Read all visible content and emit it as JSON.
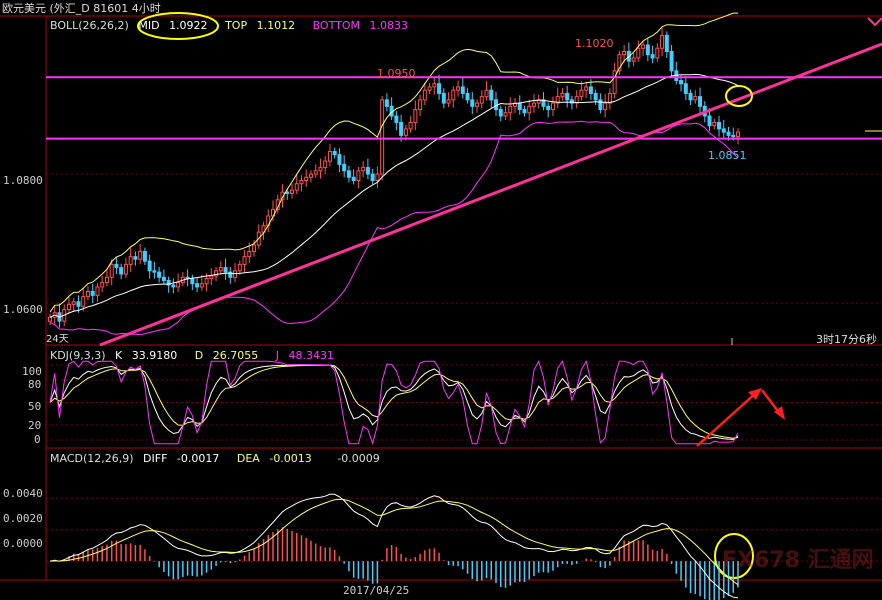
{
  "title_bar": {
    "text": "欧元美元 (外汇_D 81601 4小时"
  },
  "colors": {
    "background": "#000000",
    "axis": "#b00000",
    "grid": "#7a0000",
    "up": "#ff5050",
    "down": "#40d0ff",
    "mid_line": "#ffffff",
    "top_line": "#ffff66",
    "bottom_line": "#ff33ff",
    "trendline": "#ff3399",
    "hline": "#ff33ff",
    "k_line": "#ffffff",
    "d_line": "#ffff66",
    "j_line": "#ff33ff",
    "highlight_circle": "#ffff00",
    "arrow": "#ff2020"
  },
  "price_panel": {
    "indicator_name": "BOLL(26,26,2)",
    "mid_label": "MID",
    "mid_value": "1.0922",
    "top_label": "TOP",
    "top_value": "1.1012",
    "bottom_label": "BOTTOM",
    "bottom_value": "1.0833",
    "y_ticks": [
      "1.0800",
      "1.0600"
    ],
    "annotations": {
      "high_1": "1.0950",
      "high_2": "1.1020",
      "low_1": "1.0851"
    },
    "period_label": "24天",
    "countdown": "3时17分6秒"
  },
  "kdj_panel": {
    "indicator_name": "KDJ(9,3,3)",
    "k_label": "K",
    "k_value": "33.9180",
    "d_label": "D",
    "d_value": "26.7055",
    "j_label": "J",
    "j_value": "48.3431",
    "y_ticks": [
      "100",
      "80",
      "50",
      "20",
      "0"
    ]
  },
  "macd_panel": {
    "indicator_name": "MACD(12,26,9)",
    "diff_label": "DIFF",
    "diff_value": "-0.0017",
    "dea_label": "DEA",
    "dea_value": "-0.0013",
    "macd_value": "-0.0009",
    "y_ticks": [
      "0.0040",
      "0.0020",
      "0.0000"
    ]
  },
  "x_axis": {
    "date_label": "2017/04/25"
  },
  "watermark": {
    "text": "FX678 汇通网"
  },
  "chart_data": {
    "type": "candlestick",
    "instrument": "欧元美元",
    "timeframe": "4小时",
    "price_ylim": [
      1.0535,
      1.1045
    ],
    "horizontal_levels": [
      1.095,
      1.0855
    ],
    "trendline": [
      [
        1.0535,
        0
      ],
      [
        1.1045,
        1
      ]
    ],
    "candles_close": [
      1.0578,
      1.0585,
      1.0572,
      1.059,
      1.0598,
      1.0602,
      1.0595,
      1.061,
      1.0618,
      1.0612,
      1.0625,
      1.0632,
      1.064,
      1.066,
      1.0655,
      1.0645,
      1.066,
      1.0672,
      1.0668,
      1.068,
      1.0665,
      1.065,
      1.0648,
      1.064,
      1.0635,
      1.0628,
      1.0625,
      1.0632,
      1.064,
      1.0638,
      1.063,
      1.0625,
      1.063,
      1.0638,
      1.0642,
      1.065,
      1.0655,
      1.0648,
      1.064,
      1.065,
      1.066,
      1.0672,
      1.068,
      1.069,
      1.071,
      1.072,
      1.0735,
      1.0745,
      1.076,
      1.0772,
      1.077,
      1.0775,
      1.0785,
      1.079,
      1.0795,
      1.08,
      1.0805,
      1.081,
      1.082,
      1.0835,
      1.083,
      1.0815,
      1.0805,
      1.0795,
      1.079,
      1.0805,
      1.081,
      1.08,
      1.079,
      1.08,
      1.0915,
      1.0905,
      1.089,
      1.088,
      1.086,
      1.087,
      1.088,
      1.09,
      1.0915,
      1.093,
      1.0935,
      1.094,
      1.0925,
      1.091,
      1.0915,
      1.093,
      1.0935,
      1.0925,
      1.0915,
      1.0905,
      1.091,
      1.092,
      1.093,
      1.0915,
      1.09,
      1.089,
      1.0895,
      1.0905,
      1.091,
      1.09,
      1.0895,
      1.0905,
      1.091,
      1.0915,
      1.0905,
      1.09,
      1.091,
      1.092,
      1.0925,
      1.0915,
      1.091,
      1.092,
      1.093,
      1.0935,
      1.0925,
      1.0915,
      1.09,
      1.091,
      1.0925,
      1.096,
      1.0985,
      1.099,
      1.0975,
      1.098,
      1.0995,
      1.1,
      1.0985,
      1.098,
      1.0995,
      1.1015,
      1.099,
      1.096,
      1.0945,
      1.094,
      1.0925,
      1.0915,
      1.092,
      1.0905,
      1.089,
      1.0875,
      1.088,
      1.087,
      1.0865,
      1.086,
      1.0858,
      1.0865
    ],
    "boll": {
      "mid_value": 1.0922,
      "top_value": 1.1012,
      "bottom_value": 1.0833
    },
    "kdj": {
      "k": 33.918,
      "d": 26.7055,
      "j": 48.3431,
      "ylim": [
        0,
        100
      ]
    },
    "macd": {
      "diff": -0.0017,
      "dea": -0.0013,
      "macd": -0.0009,
      "ylim": [
        -0.0012,
        0.0058
      ]
    }
  }
}
